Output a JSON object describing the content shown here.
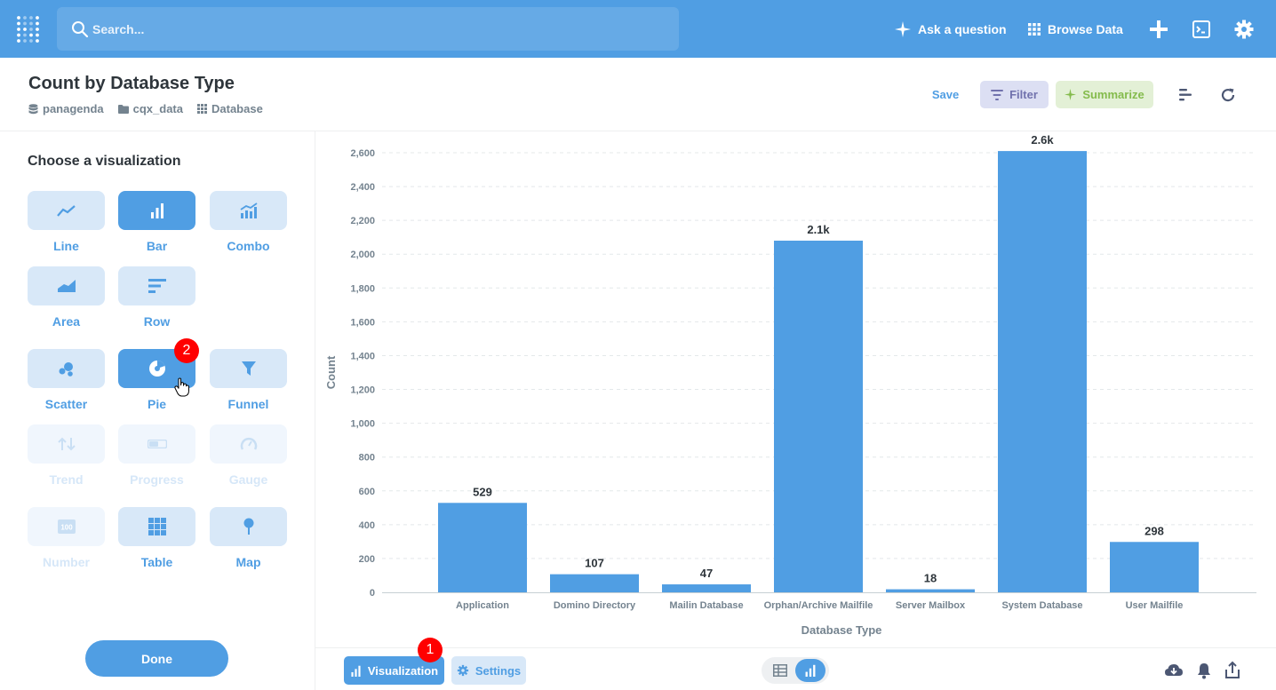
{
  "topnav": {
    "search_placeholder": "Search...",
    "ask_label": "Ask a question",
    "browse_label": "Browse Data",
    "icons": [
      "metabase-logo-icon",
      "search-icon",
      "sparkle-icon",
      "grid-icon",
      "plus-icon",
      "terminal-icon",
      "gear-icon"
    ]
  },
  "header": {
    "title": "Count by Database Type",
    "breadcrumbs": [
      "panagenda",
      "cqx_data",
      "Database"
    ],
    "save_label": "Save",
    "filter_label": "Filter",
    "summarize_label": "Summarize"
  },
  "sidebar": {
    "title": "Choose a visualization",
    "items": [
      {
        "label": "Line",
        "state": "normal"
      },
      {
        "label": "Bar",
        "state": "active"
      },
      {
        "label": "Combo",
        "state": "normal"
      },
      {
        "label": "Area",
        "state": "normal"
      },
      {
        "label": "Row",
        "state": "normal"
      },
      {
        "label": "Scatter",
        "state": "normal"
      },
      {
        "label": "Pie",
        "state": "hover"
      },
      {
        "label": "Funnel",
        "state": "normal"
      },
      {
        "label": "Trend",
        "state": "disabled"
      },
      {
        "label": "Progress",
        "state": "disabled"
      },
      {
        "label": "Gauge",
        "state": "disabled"
      },
      {
        "label": "Number",
        "state": "disabled"
      },
      {
        "label": "Table",
        "state": "normal"
      },
      {
        "label": "Map",
        "state": "normal"
      }
    ],
    "done_label": "Done"
  },
  "badges": [
    "1",
    "2"
  ],
  "chart_data": {
    "type": "bar",
    "categories": [
      "Application",
      "Domino Directory",
      "Mailin Database",
      "Orphan/Archive Mailfile",
      "Server Mailbox",
      "System Database",
      "User Mailfile"
    ],
    "values": [
      529,
      107,
      47,
      2080,
      18,
      2610,
      298
    ],
    "data_labels": [
      "529",
      "107",
      "47",
      "2.1k",
      "18",
      "2.6k",
      "298"
    ],
    "ylim": [
      0,
      2600
    ],
    "yticks": [
      "0",
      "200",
      "400",
      "600",
      "800",
      "1,000",
      "1,200",
      "1,400",
      "1,600",
      "1,800",
      "2,000",
      "2,200",
      "2,400",
      "2,600"
    ],
    "xlabel": "Database Type",
    "ylabel": "Count",
    "grid": true,
    "color": "#509ee3"
  },
  "footer": {
    "visualization_label": "Visualization",
    "settings_label": "Settings"
  },
  "colors": {
    "brand": "#509ee3",
    "filter": "#7172ad",
    "summarize": "#84bb4c",
    "badge": "#ff0000"
  }
}
